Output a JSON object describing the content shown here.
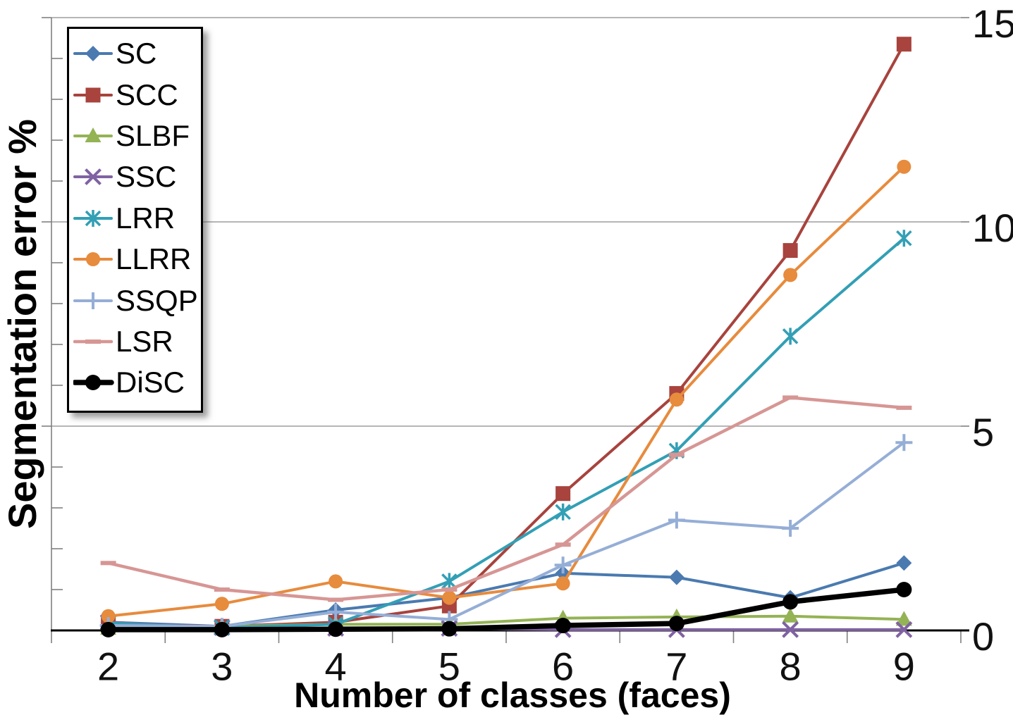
{
  "chart_data": {
    "type": "line",
    "title": "",
    "xlabel": "Number of classes (faces)",
    "ylabel": "Segmentation error %",
    "x_categories": [
      "2",
      "3",
      "4",
      "5",
      "6",
      "7",
      "8",
      "9"
    ],
    "y_ticks": [
      0,
      5,
      10,
      15
    ],
    "ylim": [
      0,
      15
    ],
    "grid": "horizontal-major-gridlines",
    "legend_position": "top-left-inside",
    "axis_colors": {
      "gridline": "#9e9e9e",
      "y_axis": "#808080",
      "x_axis": "#000000",
      "tick": "#808080"
    },
    "series": [
      {
        "name": "SC",
        "color": "#4a7ab0",
        "marker": "diamond",
        "linewidth": 4,
        "values": [
          0.2,
          0.1,
          0.5,
          0.8,
          1.4,
          1.3,
          0.8,
          1.65
        ]
      },
      {
        "name": "SCC",
        "color": "#a8433d",
        "marker": "square",
        "linewidth": 4,
        "values": [
          0.15,
          0.1,
          0.2,
          0.6,
          3.35,
          5.8,
          9.3,
          14.35
        ]
      },
      {
        "name": "SLBF",
        "color": "#94b355",
        "marker": "triangle",
        "linewidth": 4,
        "values": [
          0.05,
          0.1,
          0.15,
          0.15,
          0.3,
          0.33,
          0.35,
          0.27
        ]
      },
      {
        "name": "SSC",
        "color": "#8062a3",
        "marker": "x",
        "linewidth": 4,
        "values": [
          0.2,
          0.07,
          0.05,
          0.05,
          0.02,
          0.02,
          0.02,
          0.02
        ]
      },
      {
        "name": "LRR",
        "color": "#329fb5",
        "marker": "asterisk",
        "linewidth": 4,
        "values": [
          0.18,
          0.07,
          0.15,
          1.2,
          2.9,
          4.4,
          7.2,
          9.6
        ]
      },
      {
        "name": "LLRR",
        "color": "#e78b3d",
        "marker": "circle",
        "linewidth": 4,
        "values": [
          0.35,
          0.65,
          1.2,
          0.8,
          1.15,
          5.65,
          8.7,
          11.35
        ]
      },
      {
        "name": "SSQP",
        "color": "#95aed6",
        "marker": "plus",
        "linewidth": 4,
        "values": [
          0.12,
          0.1,
          0.45,
          0.27,
          1.6,
          2.7,
          2.5,
          4.6
        ]
      },
      {
        "name": "LSR",
        "color": "#d69694",
        "marker": "dash",
        "linewidth": 4.5,
        "values": [
          1.65,
          1.0,
          0.75,
          1.0,
          2.1,
          4.3,
          5.7,
          5.45
        ]
      },
      {
        "name": "DiSC",
        "color": "#000000",
        "marker": "circle",
        "linewidth": 7.5,
        "values": [
          0.02,
          0.02,
          0.03,
          0.04,
          0.12,
          0.17,
          0.7,
          1.0
        ]
      }
    ]
  }
}
